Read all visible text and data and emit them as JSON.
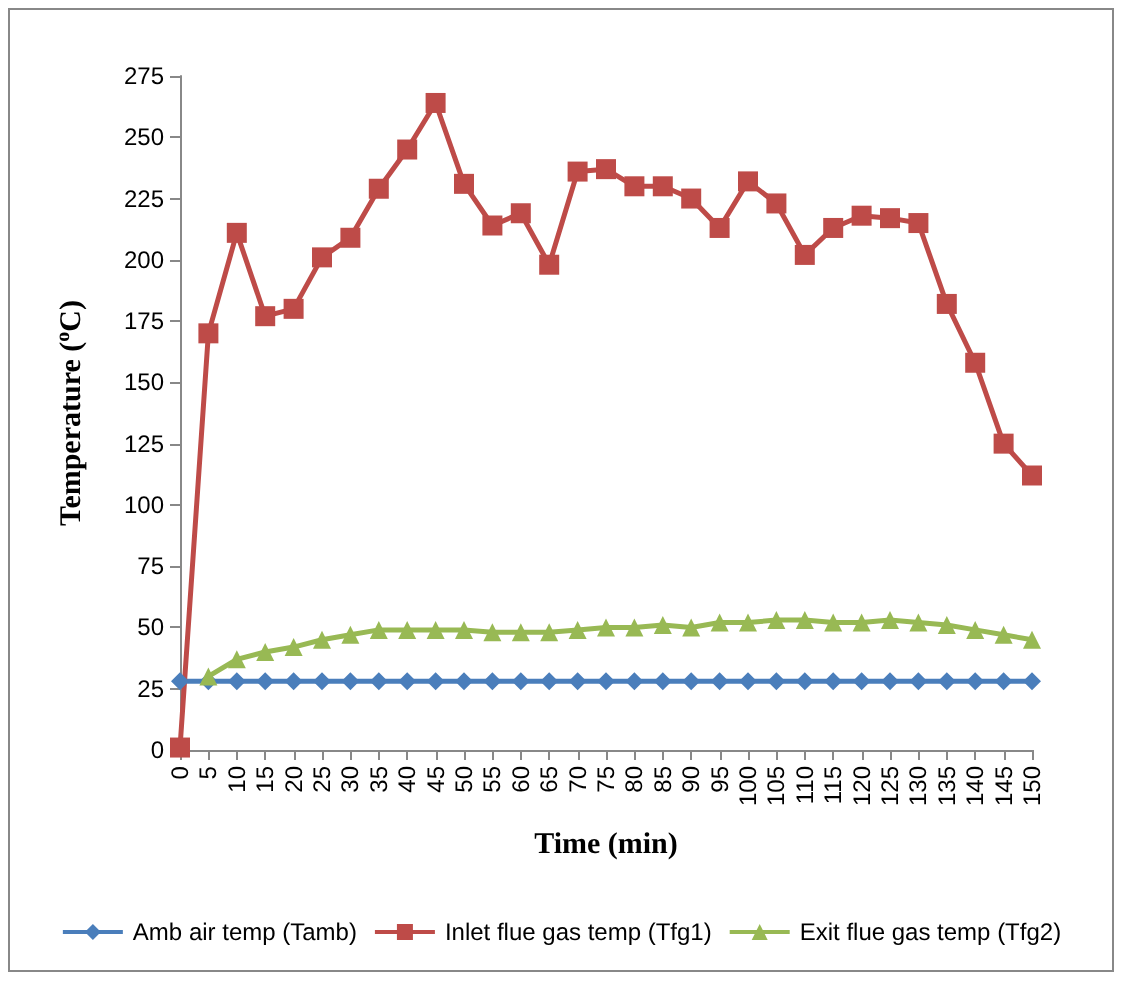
{
  "chart_data": {
    "type": "line",
    "xlabel": "Time (min)",
    "ylabel": "Temperature ($^{o}$C)",
    "categories": [
      "0",
      "5",
      "10",
      "15",
      "20",
      "25",
      "30",
      "35",
      "40",
      "45",
      "50",
      "55",
      "60",
      "65",
      "70",
      "75",
      "80",
      "85",
      "90",
      "95",
      "100",
      "105",
      "110",
      "115",
      "120",
      "125",
      "130",
      "135",
      "140",
      "145",
      "150"
    ],
    "series": [
      {
        "name": "Amb air temp (Tamb)",
        "color": "#4a7ebb",
        "marker": "diamond",
        "values": [
          28,
          28,
          28,
          28,
          28,
          28,
          28,
          28,
          28,
          28,
          28,
          28,
          28,
          28,
          28,
          28,
          28,
          28,
          28,
          28,
          28,
          28,
          28,
          28,
          28,
          28,
          28,
          28,
          28,
          28,
          28
        ]
      },
      {
        "name": "Inlet flue gas temp (Tfg1)",
        "color": "#be4b48",
        "marker": "square",
        "values": [
          1,
          170,
          211,
          177,
          180,
          201,
          209,
          229,
          245,
          264,
          231,
          214,
          219,
          198,
          236,
          237,
          230,
          230,
          225,
          213,
          232,
          223,
          202,
          213,
          218,
          217,
          215,
          182,
          158,
          125,
          112
        ]
      },
      {
        "name": "Exit flue gas temp (Tfg2)",
        "color": "#98b954",
        "marker": "triangle",
        "values": [
          null,
          30,
          37,
          40,
          42,
          45,
          47,
          49,
          49,
          49,
          49,
          48,
          48,
          48,
          49,
          50,
          50,
          51,
          50,
          52,
          52,
          53,
          53,
          52,
          52,
          53,
          52,
          51,
          49,
          47,
          45
        ]
      }
    ],
    "ylim": [
      0,
      275
    ],
    "yticks": [
      0,
      25,
      50,
      75,
      100,
      125,
      150,
      175,
      200,
      225,
      250,
      275
    ],
    "grid": false,
    "legend": "bottom"
  }
}
